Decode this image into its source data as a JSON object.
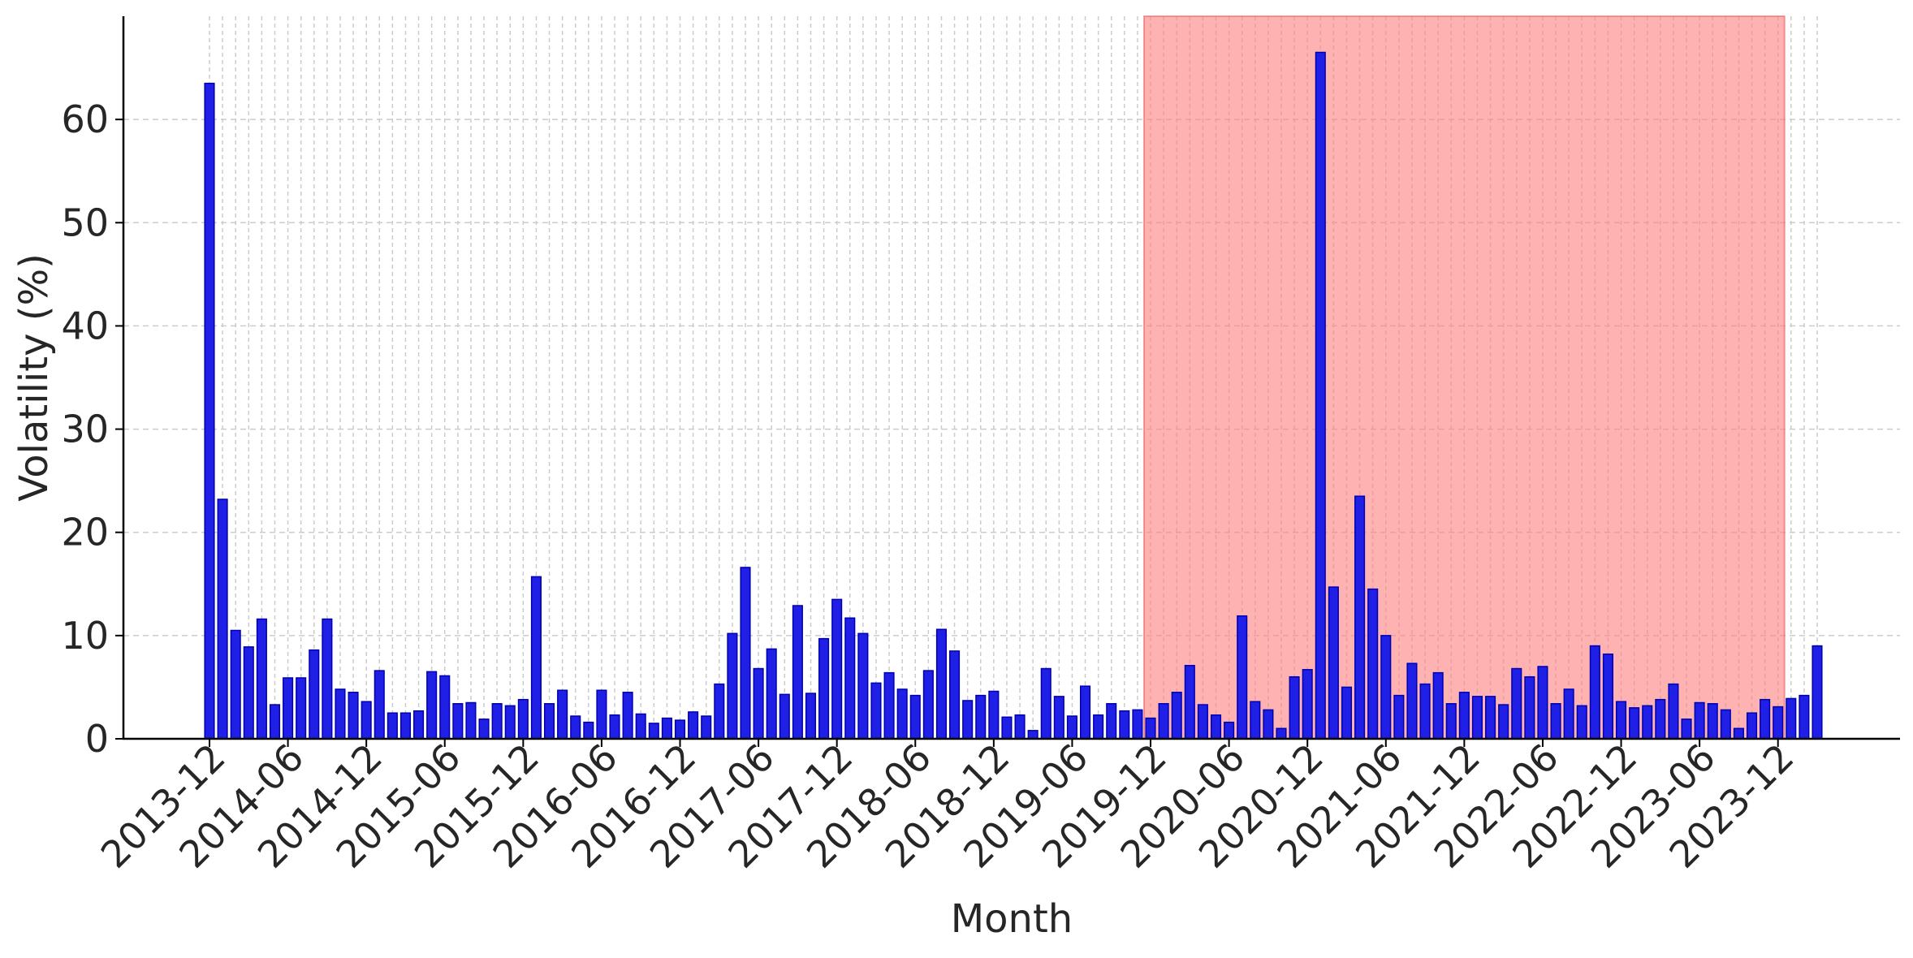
{
  "chart_data": {
    "type": "bar",
    "xlabel": "Month",
    "ylabel": "Volatility (%)",
    "ylim": [
      0,
      70
    ],
    "yticks": [
      0,
      10,
      20,
      30,
      40,
      50,
      60
    ],
    "x_start": "2013-12",
    "x_end": "2023-12",
    "xtick_labels": [
      "2013-12",
      "2014-06",
      "2014-12",
      "2015-06",
      "2015-12",
      "2016-06",
      "2016-12",
      "2017-06",
      "2017-12",
      "2018-06",
      "2018-12",
      "2019-06",
      "2019-12",
      "2020-06",
      "2020-12",
      "2021-06",
      "2021-12",
      "2022-06",
      "2022-12",
      "2023-06",
      "2023-12"
    ],
    "grid": true,
    "bar_color": "#1f1fe6",
    "bar_edge_color": "#0000b0",
    "highlight": {
      "start": "2019-12",
      "end": "2023-12",
      "color": "#ff7f7f",
      "opacity": 0.6
    },
    "values": [
      63.5,
      23.2,
      10.5,
      8.9,
      11.6,
      3.3,
      5.9,
      5.9,
      8.6,
      11.6,
      4.8,
      4.5,
      3.6,
      6.6,
      2.5,
      2.5,
      2.7,
      6.5,
      6.1,
      3.4,
      3.5,
      1.9,
      3.4,
      3.2,
      3.8,
      15.7,
      3.4,
      4.7,
      2.2,
      1.6,
      4.7,
      2.3,
      4.5,
      2.4,
      1.5,
      2.0,
      1.8,
      2.6,
      2.2,
      5.3,
      10.2,
      16.6,
      6.8,
      8.7,
      4.3,
      12.9,
      4.4,
      9.7,
      13.5,
      11.7,
      10.2,
      5.4,
      6.4,
      4.8,
      4.2,
      6.6,
      10.6,
      8.5,
      3.7,
      4.2,
      4.6,
      2.1,
      2.3,
      0.8,
      6.8,
      4.1,
      2.2,
      5.1,
      2.3,
      3.4,
      2.7,
      2.8,
      2.0,
      3.4,
      4.5,
      7.1,
      3.3,
      2.3,
      1.6,
      11.9,
      3.6,
      2.8,
      1.0,
      6.0,
      6.7,
      66.5,
      14.7,
      5.0,
      23.5,
      14.5,
      10.0,
      4.2,
      7.3,
      5.3,
      6.4,
      3.4,
      4.5,
      4.1,
      4.1,
      3.3,
      6.8,
      6.0,
      7.0,
      3.4,
      4.8,
      3.2,
      9.0,
      8.2,
      3.6,
      3.0,
      3.2,
      3.8,
      5.3,
      1.9,
      3.5,
      3.4,
      2.8,
      1.0,
      2.5,
      3.8,
      3.1,
      3.9,
      4.2,
      9.0
    ]
  }
}
